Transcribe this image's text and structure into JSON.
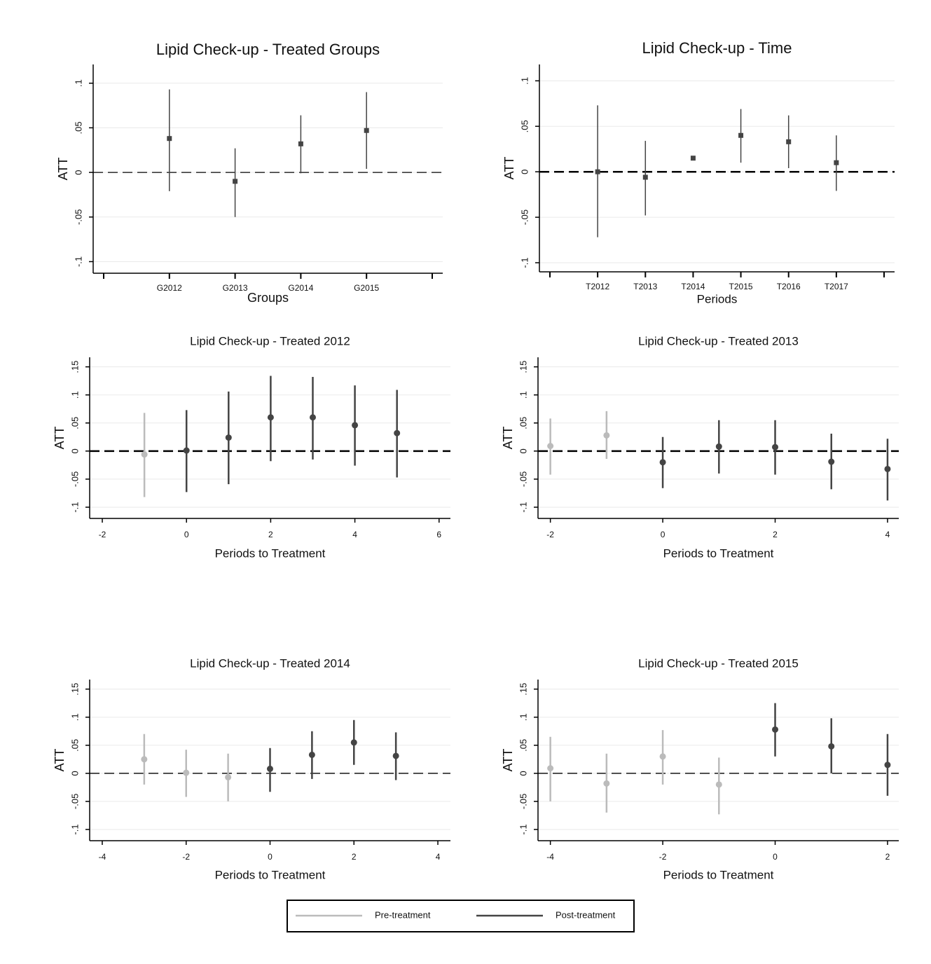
{
  "chart_data": [
    {
      "type": "errorbar",
      "title": "Lipid Check-up - Treated Groups",
      "xlabel": "Groups",
      "ylabel": "ATT",
      "categories": [
        "G2012",
        "G2013",
        "G2014",
        "G2015"
      ],
      "values": [
        0.038,
        -0.01,
        0.032,
        0.047
      ],
      "lower": [
        -0.021,
        -0.05,
        -0.001,
        0.004
      ],
      "upper": [
        0.093,
        0.027,
        0.064,
        0.09
      ],
      "color": "#444444",
      "ylim": [
        -0.113,
        0.121
      ],
      "yticks": [
        {
          "value": -0.1,
          "label": "-.1"
        },
        {
          "value": -0.05,
          "label": "-.05"
        },
        0,
        {
          "value": 0.05,
          "label": ".05"
        },
        {
          "value": 0.1,
          "label": ".1"
        }
      ],
      "yline": 0,
      "grid": true
    },
    {
      "type": "errorbar",
      "title": "Lipid Check-up - Time",
      "xlabel": "Periods",
      "ylabel": "ATT",
      "categories": [
        "T2012",
        "T2013",
        "T2014",
        "T2015",
        "T2016",
        "T2017"
      ],
      "values": [
        0.0,
        -0.006,
        0.015,
        0.04,
        0.033,
        0.01
      ],
      "lower": [
        -0.072,
        -0.048,
        0.013,
        0.01,
        0.004,
        -0.021
      ],
      "upper": [
        0.073,
        0.034,
        0.017,
        0.069,
        0.062,
        0.04
      ],
      "color": "#444444",
      "ylim": [
        -0.11,
        0.118
      ],
      "yticks": [
        {
          "value": -0.1,
          "label": "-.1"
        },
        {
          "value": -0.05,
          "label": "-.05"
        },
        0,
        {
          "value": 0.05,
          "label": ".05"
        },
        {
          "value": 0.1,
          "label": ".1"
        }
      ],
      "yline": 0,
      "grid": true
    },
    {
      "type": "errorbar",
      "title": "Lipid Check-up - Treated 2012",
      "xlabel": "Periods to Treatment",
      "ylabel": "ATT",
      "x": [
        -1,
        0,
        1,
        2,
        3,
        4,
        5
      ],
      "values": [
        -0.006,
        0.001,
        0.024,
        0.06,
        0.06,
        0.046,
        0.032
      ],
      "lower": [
        -0.082,
        -0.073,
        -0.059,
        -0.018,
        -0.015,
        -0.026,
        -0.047
      ],
      "upper": [
        0.068,
        0.073,
        0.106,
        0.134,
        0.132,
        0.117,
        0.109
      ],
      "treatment_start": 0,
      "xlim": [
        -2.3,
        6.27
      ],
      "xticks": [
        -2,
        0,
        2,
        4,
        6
      ],
      "ylim": [
        -0.12,
        0.167
      ],
      "yticks": [
        {
          "value": -0.1,
          "label": "-.1"
        },
        {
          "value": -0.05,
          "label": "-.05"
        },
        0,
        {
          "value": 0.05,
          "label": ".05"
        },
        {
          "value": 0.1,
          "label": ".1"
        },
        {
          "value": 0.15,
          "label": ".15"
        }
      ],
      "yline": 0,
      "grid": true
    },
    {
      "type": "errorbar",
      "title": "Lipid Check-up - Treated 2013",
      "xlabel": "Periods to Treatment",
      "ylabel": "ATT",
      "x": [
        -2,
        -1,
        0,
        1,
        2,
        3,
        4
      ],
      "values": [
        0.009,
        0.028,
        -0.02,
        0.008,
        0.007,
        -0.019,
        -0.032
      ],
      "lower": [
        -0.042,
        -0.014,
        -0.066,
        -0.04,
        -0.042,
        -0.068,
        -0.088
      ],
      "upper": [
        0.058,
        0.071,
        0.025,
        0.055,
        0.055,
        0.031,
        0.022
      ],
      "treatment_start": 0,
      "xlim": [
        -2.22,
        4.2
      ],
      "xticks": [
        -2,
        0,
        2,
        4
      ],
      "ylim": [
        -0.12,
        0.167
      ],
      "yticks": [
        {
          "value": -0.1,
          "label": "-.1"
        },
        {
          "value": -0.05,
          "label": "-.05"
        },
        0,
        {
          "value": 0.05,
          "label": ".05"
        },
        {
          "value": 0.1,
          "label": ".1"
        },
        {
          "value": 0.15,
          "label": ".15"
        }
      ],
      "yline": 0,
      "grid": true
    },
    {
      "type": "errorbar",
      "title": "Lipid Check-up - Treated 2014",
      "xlabel": "Periods to Treatment",
      "ylabel": "ATT",
      "x": [
        -3,
        -2,
        -1,
        0,
        1,
        2,
        3
      ],
      "values": [
        0.025,
        0.001,
        -0.007,
        0.008,
        0.033,
        0.055,
        0.031
      ],
      "lower": [
        -0.02,
        -0.042,
        -0.05,
        -0.033,
        -0.01,
        0.015,
        -0.012
      ],
      "upper": [
        0.07,
        0.042,
        0.035,
        0.045,
        0.075,
        0.095,
        0.073
      ],
      "treatment_start": 0,
      "xlim": [
        -4.3,
        4.3
      ],
      "xticks": [
        -4,
        -2,
        0,
        2,
        4
      ],
      "ylim": [
        -0.12,
        0.167
      ],
      "yticks": [
        {
          "value": -0.1,
          "label": "-.1"
        },
        {
          "value": -0.05,
          "label": "-.05"
        },
        0,
        {
          "value": 0.05,
          "label": ".05"
        },
        {
          "value": 0.1,
          "label": ".1"
        },
        {
          "value": 0.15,
          "label": ".15"
        }
      ],
      "yline": 0,
      "grid": true
    },
    {
      "type": "errorbar",
      "title": "Lipid Check-up - Treated 2015",
      "xlabel": "Periods to Treatment",
      "ylabel": "ATT",
      "x": [
        -4,
        -3,
        -2,
        -1,
        0,
        1,
        2
      ],
      "values": [
        0.009,
        -0.018,
        0.03,
        -0.02,
        0.078,
        0.048,
        0.015
      ],
      "lower": [
        -0.05,
        -0.07,
        -0.02,
        -0.073,
        0.03,
        0,
        -0.04
      ],
      "upper": [
        0.065,
        0.035,
        0.077,
        0.028,
        0.125,
        0.098,
        0.07
      ],
      "treatment_start": 0,
      "xlim": [
        -4.22,
        2.2
      ],
      "xticks": [
        -4,
        -2,
        0,
        2
      ],
      "ylim": [
        -0.12,
        0.167
      ],
      "yticks": [
        {
          "value": -0.1,
          "label": "-.1"
        },
        {
          "value": -0.05,
          "label": "-.05"
        },
        0,
        {
          "value": 0.05,
          "label": ".05"
        },
        {
          "value": 0.1,
          "label": ".1"
        },
        {
          "value": 0.15,
          "label": ".15"
        }
      ],
      "yline": 0,
      "grid": true
    }
  ],
  "legend": [
    {
      "name": "Pre-treatment",
      "color": "#bbbbbb"
    },
    {
      "name": "Post-treatment",
      "color": "#444444"
    }
  ]
}
